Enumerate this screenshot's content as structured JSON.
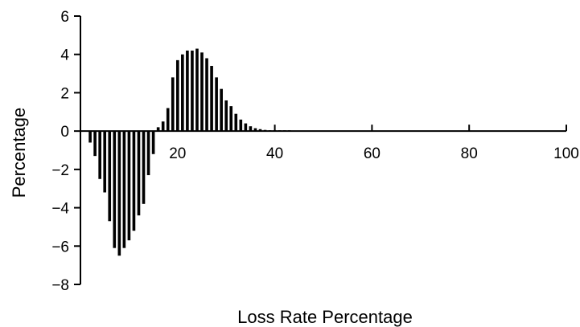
{
  "chart_data": {
    "type": "bar",
    "title": "",
    "xlabel": "Loss Rate Percentage",
    "ylabel": "Percentage",
    "xlim": [
      0,
      100
    ],
    "ylim": [
      -8,
      6
    ],
    "grid": false,
    "x_ticks": [
      20,
      40,
      60,
      80,
      100
    ],
    "y_ticks": [
      -8,
      -6,
      -4,
      -2,
      0,
      2,
      4,
      6
    ],
    "x": [
      2,
      3,
      4,
      5,
      6,
      7,
      8,
      9,
      10,
      11,
      12,
      13,
      14,
      15,
      16,
      17,
      18,
      19,
      20,
      21,
      22,
      23,
      24,
      25,
      26,
      27,
      28,
      29,
      30,
      31,
      32,
      33,
      34,
      35,
      36,
      37,
      38,
      39,
      40,
      41,
      42,
      43
    ],
    "values": [
      -0.6,
      -1.3,
      -2.5,
      -3.2,
      -4.7,
      -6.1,
      -6.5,
      -6.1,
      -5.7,
      -5.2,
      -4.4,
      -3.8,
      -2.3,
      -1.2,
      0.2,
      0.5,
      1.2,
      2.8,
      3.7,
      4.0,
      4.2,
      4.2,
      4.3,
      4.1,
      3.8,
      3.4,
      2.8,
      2.2,
      1.6,
      1.3,
      0.9,
      0.6,
      0.4,
      0.25,
      0.15,
      0.1,
      0.06,
      0.03,
      0.02,
      0.01,
      0.01,
      0.01
    ]
  }
}
